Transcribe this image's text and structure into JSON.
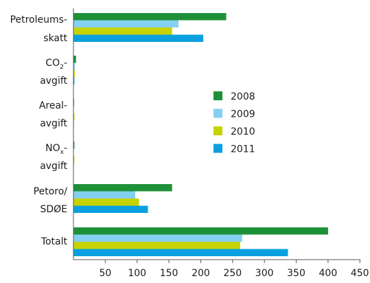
{
  "chart_data": {
    "type": "bar",
    "orientation": "horizontal",
    "categories": [
      {
        "lines": [
          {
            "text": "Petroleums-"
          },
          {
            "text": "skatt"
          }
        ]
      },
      {
        "lines": [
          {
            "text": "CO",
            "sub": "2",
            "after": "-"
          },
          {
            "text": "avgift"
          }
        ]
      },
      {
        "lines": [
          {
            "text": "Areal-"
          },
          {
            "text": "avgift"
          }
        ]
      },
      {
        "lines": [
          {
            "text": "NO",
            "sub": "x",
            "after": "-"
          },
          {
            "text": "avgift"
          }
        ]
      },
      {
        "lines": [
          {
            "text": "Petoro/"
          },
          {
            "text": "SDØE"
          }
        ]
      },
      {
        "lines": [
          {
            "text": "Totalt"
          }
        ]
      }
    ],
    "series": [
      {
        "name": "2008",
        "color": "#1e9138",
        "values": [
          240,
          4,
          1,
          1.5,
          155,
          400
        ]
      },
      {
        "name": "2009",
        "color": "#84d0f0",
        "values": [
          165,
          2,
          0.5,
          0.5,
          97,
          265
        ]
      },
      {
        "name": "2010",
        "color": "#c7d300",
        "values": [
          155,
          2,
          1.5,
          1.5,
          103,
          262
        ]
      },
      {
        "name": "2011",
        "color": "#0aa0e0",
        "values": [
          204,
          1.5,
          0.5,
          0.5,
          117,
          337
        ]
      }
    ],
    "xlim": [
      0,
      450
    ],
    "xticks": [
      50,
      100,
      150,
      200,
      250,
      300,
      350,
      400,
      450
    ],
    "grid": false,
    "legend": "center-right"
  }
}
